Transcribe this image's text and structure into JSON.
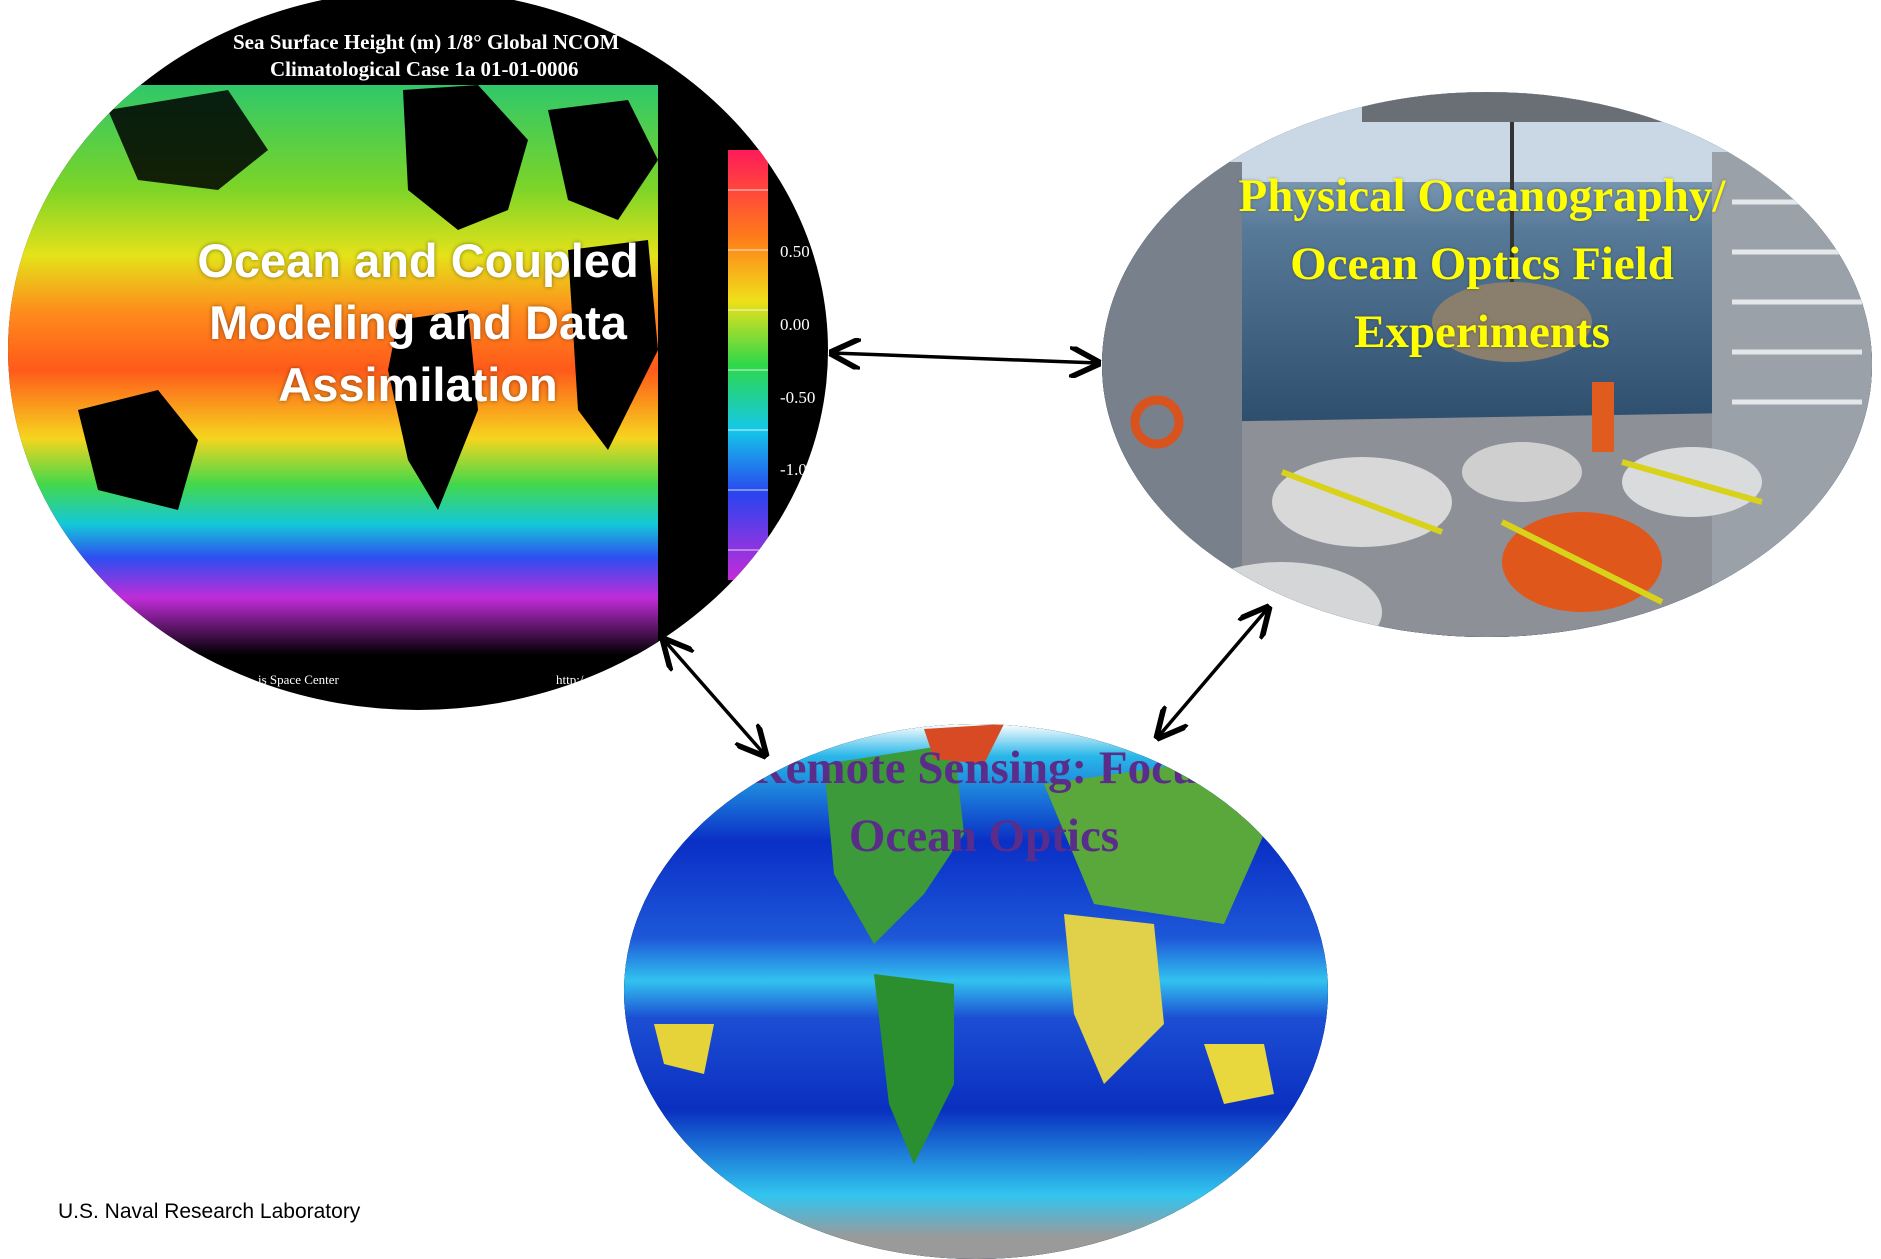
{
  "ocean_model": {
    "header_line1": "Sea Surface Height (m)    1/8° Global NCOM",
    "header_line2": "Climatological Case 1a     01-01-0006",
    "scale_labels": [
      "0.50",
      "0.00",
      "-0.50",
      "-1.00"
    ],
    "credit_left": "is Space Center",
    "credit_right": "http:/",
    "title": "Ocean and Coupled Modeling and Data Assimilation"
  },
  "field_experiments": {
    "title": "Physical Oceanography/ Ocean Optics Field Experiments"
  },
  "remote_sensing": {
    "title": "Remote Sensing: Focus Ocean Optics"
  },
  "footer": "U.S. Naval Research Laboratory",
  "colors": {
    "ocean_title": "#ffffff",
    "field_title": "#ffff00",
    "remote_title": "#5a2d8a",
    "arrow": "#000000"
  }
}
